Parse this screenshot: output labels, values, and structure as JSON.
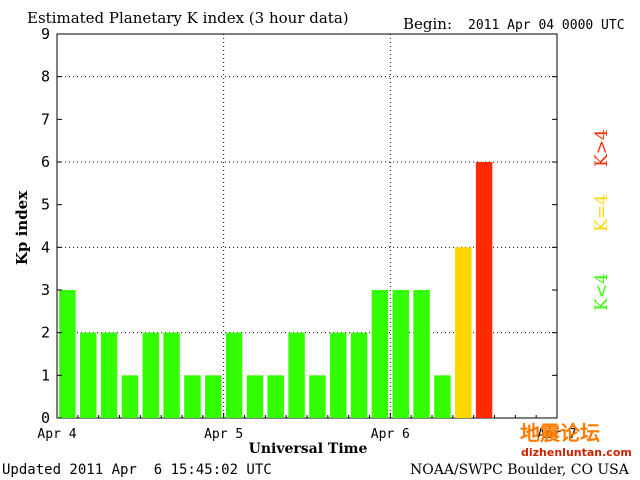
{
  "chart_data": {
    "type": "bar",
    "title": "Estimated Planetary K index (3 hour data)",
    "begin_label": "Begin:",
    "begin_value": "2011 Apr 04 0000 UTC",
    "xlabel": "Universal Time",
    "ylabel": "Kp index",
    "ylim": [
      0,
      9
    ],
    "yticks": [
      "0",
      "1",
      "2",
      "3",
      "4",
      "5",
      "6",
      "7",
      "8",
      "9"
    ],
    "xticks": [
      "Apr 4",
      "Apr 5",
      "Apr 6",
      "Apr 7"
    ],
    "bins_per_day": 8,
    "total_bins": 24,
    "grid": true,
    "values": [
      3,
      2,
      2,
      1,
      2,
      2,
      1,
      1,
      2,
      1,
      1,
      2,
      1,
      2,
      2,
      3,
      3,
      3,
      1,
      4,
      6
    ],
    "legend": [
      {
        "label": "K<4",
        "color": "#33ff00"
      },
      {
        "label": "K=4",
        "color": "#ffd700"
      },
      {
        "label": "K>4",
        "color": "#ff2a00"
      }
    ]
  },
  "footer": {
    "updated": "Updated 2011 Apr  6 15:45:02 UTC",
    "source": "NOAA/SWPC Boulder, CO USA"
  },
  "watermark": {
    "text": "地震论坛",
    "url": "dizhenluntan.com"
  },
  "colors": {
    "low": "#33ff00",
    "mid": "#ffd700",
    "high": "#ff2a00",
    "watermark": "#ff7a00",
    "watermark_url": "#cc2200"
  }
}
